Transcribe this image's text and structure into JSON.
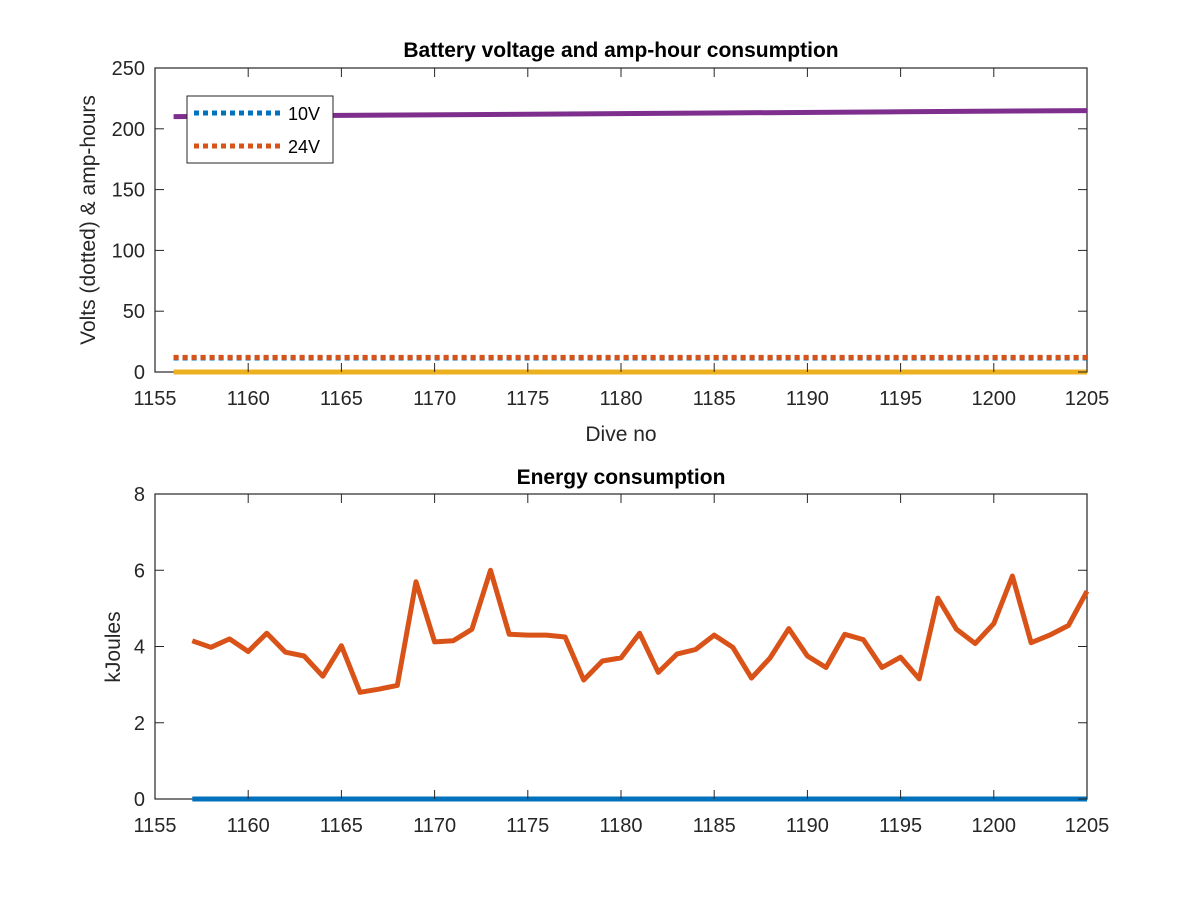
{
  "chart_data": [
    {
      "type": "line",
      "title": "Battery voltage and amp-hour consumption",
      "xlabel": "Dive no",
      "ylabel": "Volts (dotted) & amp-hours",
      "xlim": [
        1155,
        1205
      ],
      "ylim": [
        0,
        250
      ],
      "xticks": [
        1155,
        1160,
        1165,
        1170,
        1175,
        1180,
        1185,
        1190,
        1195,
        1200,
        1205
      ],
      "yticks": [
        0,
        50,
        100,
        150,
        200,
        250
      ],
      "grid": false,
      "legend_position": "top-left",
      "series": [
        {
          "name": "10V",
          "style": "dotted",
          "color": "#0072BD",
          "x": [
            1156,
            1205
          ],
          "y": [
            11.5,
            11.5
          ]
        },
        {
          "name": "24V",
          "style": "dotted",
          "color": "#D95319",
          "x": [
            1156,
            1205
          ],
          "y": [
            12,
            12
          ]
        },
        {
          "style": "solid",
          "color": "#7E2F8E",
          "x": [
            1156,
            1165,
            1175,
            1185,
            1195,
            1205
          ],
          "y": [
            210,
            211,
            212,
            213,
            214,
            215
          ]
        },
        {
          "style": "solid",
          "color": "#EDB120",
          "x": [
            1156,
            1205
          ],
          "y": [
            0,
            0
          ]
        }
      ]
    },
    {
      "type": "line",
      "title": "Energy consumption",
      "xlabel": "",
      "ylabel": "kJoules",
      "xlim": [
        1155,
        1205
      ],
      "ylim": [
        0,
        8
      ],
      "xticks": [
        1155,
        1160,
        1165,
        1170,
        1175,
        1180,
        1185,
        1190,
        1195,
        1200,
        1205
      ],
      "yticks": [
        0,
        2,
        4,
        6,
        8
      ],
      "grid": false,
      "series": [
        {
          "style": "solid",
          "color": "#0072BD",
          "x": [
            1157,
            1205
          ],
          "y": [
            0,
            0
          ]
        },
        {
          "style": "solid",
          "color": "#D95319",
          "x": [
            1157,
            1158,
            1159,
            1160,
            1161,
            1162,
            1163,
            1164,
            1165,
            1166,
            1167,
            1168,
            1169,
            1170,
            1171,
            1172,
            1173,
            1174,
            1175,
            1176,
            1177,
            1178,
            1179,
            1180,
            1181,
            1182,
            1183,
            1184,
            1185,
            1186,
            1187,
            1188,
            1189,
            1190,
            1191,
            1192,
            1193,
            1194,
            1195,
            1196,
            1197,
            1198,
            1199,
            1200,
            1201,
            1202,
            1203,
            1204,
            1205
          ],
          "y": [
            4.15,
            3.98,
            4.2,
            3.87,
            4.35,
            3.85,
            3.75,
            3.22,
            4.02,
            2.8,
            2.88,
            2.98,
            5.7,
            4.12,
            4.15,
            4.45,
            6.0,
            4.32,
            4.3,
            4.3,
            4.25,
            3.12,
            3.62,
            3.7,
            4.35,
            3.32,
            3.8,
            3.92,
            4.3,
            3.98,
            3.17,
            3.7,
            4.47,
            3.75,
            3.45,
            4.32,
            4.18,
            3.45,
            3.72,
            3.15,
            5.27,
            4.45,
            4.08,
            4.6,
            5.85,
            4.1,
            4.3,
            4.55,
            5.45
          ]
        }
      ]
    }
  ]
}
